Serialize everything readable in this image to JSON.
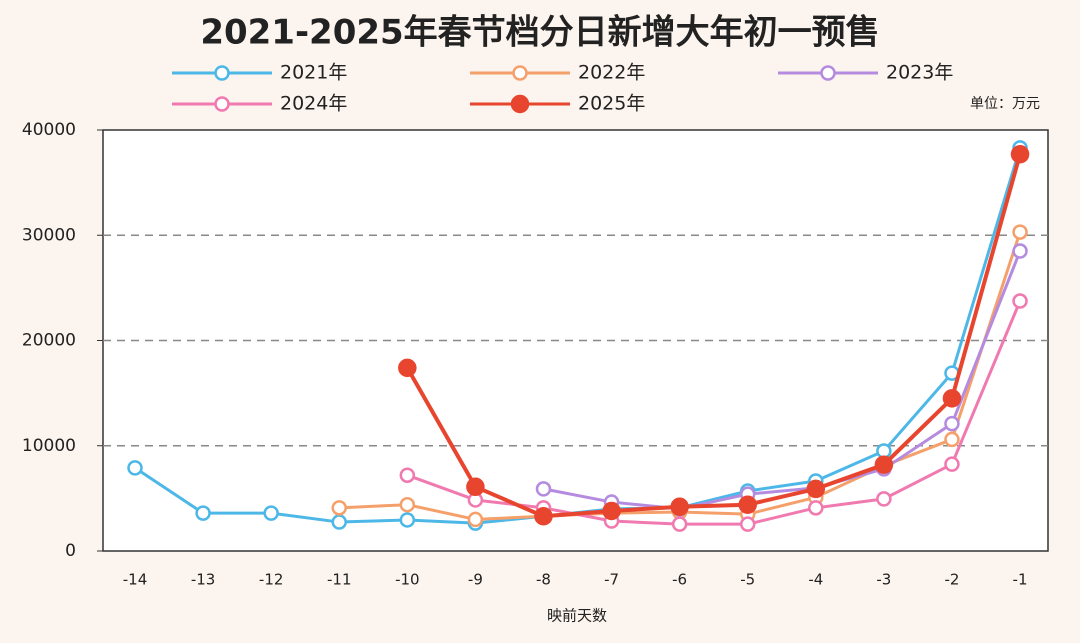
{
  "chart_data": {
    "type": "line",
    "title": "2021-2025年春节档分日新增大年初一预售",
    "unit_label": "单位：万元",
    "x_label": "映前天数",
    "categories": [
      "-14",
      "-13",
      "-12",
      "-11",
      "-10",
      "-9",
      "-8",
      "-7",
      "-6",
      "-5",
      "-4",
      "-3",
      "-2",
      "-1"
    ],
    "series": [
      {
        "name": "2021年",
        "color": "#4db8e8",
        "filled": false,
        "values": [
          7900,
          3600,
          3600,
          2750,
          2950,
          2650,
          3300,
          4000,
          4100,
          5700,
          6650,
          9500,
          16900,
          38300
        ]
      },
      {
        "name": "2022年",
        "color": "#f5a06a",
        "filled": false,
        "values": [
          null,
          null,
          null,
          4100,
          4400,
          3000,
          3300,
          3600,
          3700,
          3500,
          5100,
          8100,
          10600,
          30300
        ]
      },
      {
        "name": "2023年",
        "color": "#b58be0",
        "filled": false,
        "values": [
          null,
          null,
          null,
          null,
          null,
          null,
          5900,
          4650,
          4000,
          5400,
          6000,
          7800,
          12100,
          28500
        ]
      },
      {
        "name": "2024年",
        "color": "#f07ab0",
        "filled": false,
        "values": [
          null,
          null,
          null,
          null,
          7200,
          4850,
          4100,
          2850,
          2550,
          2550,
          4100,
          4950,
          8250,
          23750
        ]
      },
      {
        "name": "2025年",
        "color": "#e8452f",
        "filled": true,
        "values": [
          null,
          null,
          null,
          null,
          17400,
          6100,
          3300,
          3800,
          4200,
          4400,
          5900,
          8200,
          14500,
          37700
        ]
      }
    ],
    "ylim": [
      0,
      40000
    ],
    "yticks": [
      0,
      10000,
      20000,
      30000,
      40000
    ],
    "grid": true
  }
}
